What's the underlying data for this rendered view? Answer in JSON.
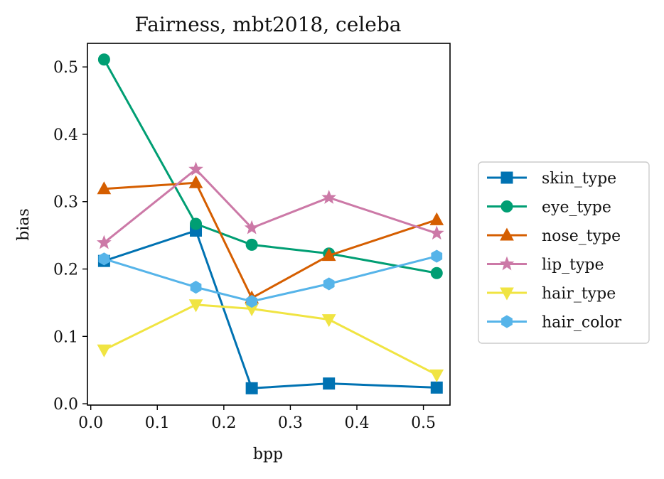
{
  "chart_data": {
    "type": "line",
    "title": "Fairness, mbt2018, celeba",
    "xlabel": "bpp",
    "ylabel": "bias",
    "xlim": [
      -0.005,
      0.54
    ],
    "ylim": [
      -0.002,
      0.535
    ],
    "xticks": [
      0.0,
      0.1,
      0.2,
      0.3,
      0.4,
      0.5
    ],
    "xtick_labels": [
      "0.0",
      "0.1",
      "0.2",
      "0.3",
      "0.4",
      "0.5"
    ],
    "yticks": [
      0.0,
      0.1,
      0.2,
      0.3,
      0.4,
      0.5
    ],
    "ytick_labels": [
      "0.0",
      "0.1",
      "0.2",
      "0.3",
      "0.4",
      "0.5"
    ],
    "grid": false,
    "legend_position": "outside-right",
    "x": [
      0.02,
      0.158,
      0.242,
      0.358,
      0.52
    ],
    "series": [
      {
        "name": "skin_type",
        "color": "#0072b2",
        "marker": "square",
        "values": [
          0.212,
          0.257,
          0.023,
          0.03,
          0.024
        ]
      },
      {
        "name": "eye_type",
        "color": "#009e73",
        "marker": "circle",
        "values": [
          0.511,
          0.267,
          0.236,
          0.223,
          0.194
        ]
      },
      {
        "name": "nose_type",
        "color": "#d55e00",
        "marker": "triangle-up",
        "values": [
          0.319,
          0.328,
          0.157,
          0.22,
          0.273
        ]
      },
      {
        "name": "lip_type",
        "color": "#cc79a7",
        "marker": "star",
        "values": [
          0.239,
          0.348,
          0.261,
          0.306,
          0.253
        ]
      },
      {
        "name": "hair_type",
        "color": "#f0e442",
        "marker": "triangle-down",
        "values": [
          0.08,
          0.147,
          0.141,
          0.125,
          0.043
        ]
      },
      {
        "name": "hair_color",
        "color": "#56b4e9",
        "marker": "hexagon",
        "values": [
          0.215,
          0.173,
          0.152,
          0.178,
          0.219
        ]
      }
    ]
  }
}
